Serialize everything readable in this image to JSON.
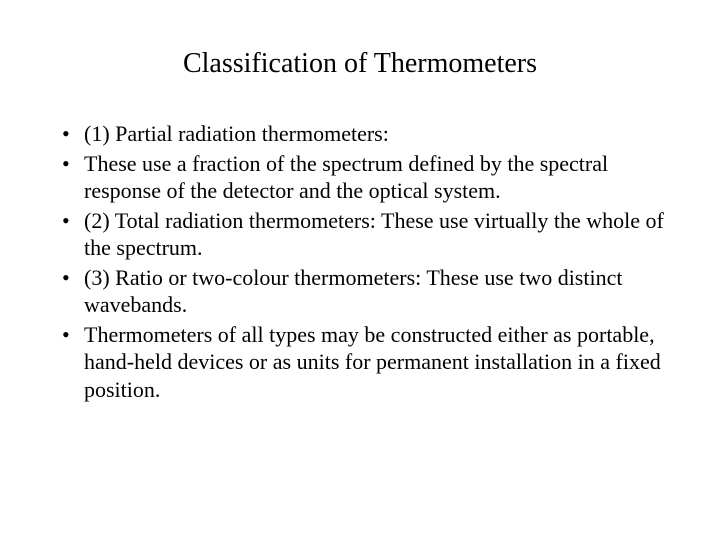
{
  "title": "Classification of Thermometers",
  "bullets": [
    "(1) Partial radiation thermometers:",
    "These use a fraction of the spectrum defined by the spectral response of the detector and the optical system.",
    "(2) Total radiation thermometers: These use virtually the whole of the spectrum.",
    "(3) Ratio or two-colour thermometers: These use two distinct wavebands.",
    "Thermometers of all types may be constructed either as portable, hand-held devices or as units for permanent installation in a fixed position."
  ],
  "colors": {
    "background": "#ffffff",
    "text": "#000000"
  },
  "typography": {
    "title_fontsize_pt": 21,
    "body_fontsize_pt": 16,
    "font_family": "Times New Roman"
  }
}
